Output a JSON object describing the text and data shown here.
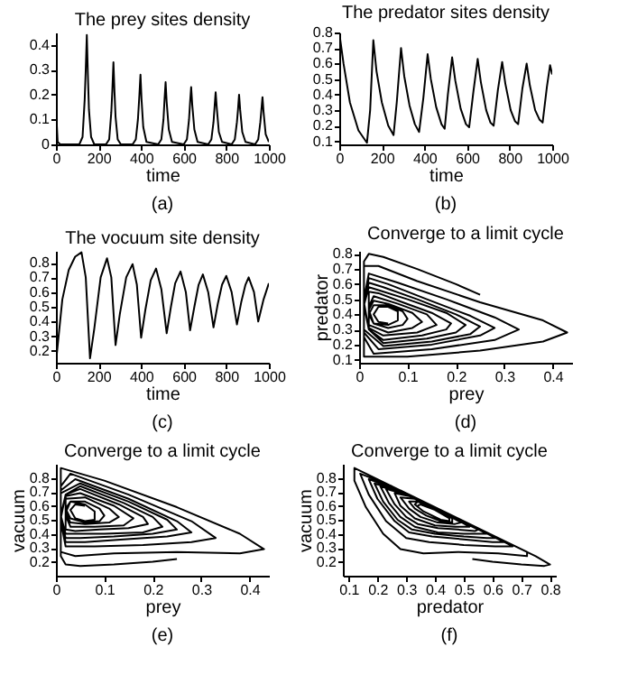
{
  "chart_data": [
    {
      "type": "line",
      "title": "The prey sites density",
      "xlabel": "time",
      "annotations": [
        "(a)"
      ],
      "color": "#000000",
      "xlim": [
        0,
        1000
      ],
      "xticks": [
        0,
        200,
        400,
        600,
        800,
        1000
      ],
      "ylim": [
        0,
        0.45
      ],
      "yticks": [
        0,
        0.1,
        0.2,
        0.3,
        0.4
      ],
      "x": [
        0,
        8,
        20,
        110,
        125,
        135,
        140,
        145,
        150,
        155,
        165,
        180,
        235,
        250,
        260,
        265,
        270,
        275,
        280,
        290,
        305,
        360,
        375,
        385,
        392,
        397,
        402,
        410,
        425,
        480,
        495,
        505,
        510,
        515,
        520,
        530,
        545,
        600,
        615,
        625,
        630,
        635,
        640,
        650,
        665,
        715,
        730,
        740,
        745,
        750,
        755,
        765,
        780,
        825,
        840,
        850,
        855,
        860,
        865,
        875,
        890,
        935,
        950,
        960,
        965,
        970,
        975,
        985,
        1000
      ],
      "values": [
        0.15,
        0.01,
        0,
        0,
        0.03,
        0.18,
        0.3,
        0.44,
        0.28,
        0.14,
        0.03,
        0,
        0,
        0.02,
        0.13,
        0.22,
        0.33,
        0.21,
        0.11,
        0.02,
        0,
        0,
        0.02,
        0.1,
        0.2,
        0.28,
        0.18,
        0.07,
        0.01,
        0,
        0.02,
        0.1,
        0.18,
        0.25,
        0.17,
        0.06,
        0.01,
        0,
        0.02,
        0.1,
        0.17,
        0.23,
        0.16,
        0.06,
        0.01,
        0,
        0.02,
        0.09,
        0.15,
        0.21,
        0.15,
        0.05,
        0.01,
        0,
        0.02,
        0.09,
        0.14,
        0.2,
        0.14,
        0.05,
        0.01,
        0,
        0.02,
        0.09,
        0.14,
        0.19,
        0.13,
        0.04,
        0.01
      ]
    },
    {
      "type": "line",
      "title": "The predator sites density",
      "xlabel": "time",
      "annotations": [
        "(b)"
      ],
      "color": "#000000",
      "xlim": [
        0,
        1000
      ],
      "xticks": [
        0,
        200,
        400,
        600,
        800,
        1000
      ],
      "ylim": [
        0.08,
        0.8
      ],
      "yticks": [
        0.1,
        0.2,
        0.3,
        0.4,
        0.5,
        0.6,
        0.7,
        0.8
      ],
      "x": [
        0,
        20,
        50,
        90,
        130,
        145,
        160,
        175,
        200,
        230,
        255,
        270,
        290,
        305,
        330,
        355,
        375,
        395,
        415,
        430,
        455,
        480,
        495,
        510,
        530,
        545,
        570,
        595,
        610,
        630,
        650,
        665,
        690,
        710,
        725,
        745,
        765,
        780,
        805,
        825,
        840,
        860,
        880,
        895,
        920,
        940,
        955,
        975,
        990,
        1000
      ],
      "values": [
        0.8,
        0.6,
        0.35,
        0.17,
        0.09,
        0.3,
        0.75,
        0.55,
        0.35,
        0.2,
        0.14,
        0.35,
        0.7,
        0.52,
        0.33,
        0.21,
        0.16,
        0.38,
        0.66,
        0.5,
        0.32,
        0.21,
        0.18,
        0.4,
        0.64,
        0.49,
        0.31,
        0.21,
        0.19,
        0.42,
        0.63,
        0.48,
        0.3,
        0.22,
        0.2,
        0.43,
        0.61,
        0.47,
        0.3,
        0.23,
        0.21,
        0.44,
        0.6,
        0.46,
        0.3,
        0.24,
        0.22,
        0.45,
        0.59,
        0.53
      ]
    },
    {
      "type": "line",
      "title": "The vocuum site density",
      "xlabel": "time",
      "annotations": [
        "(c)"
      ],
      "color": "#000000",
      "xlim": [
        0,
        1000
      ],
      "xticks": [
        0,
        200,
        400,
        600,
        800,
        1000
      ],
      "ylim": [
        0.12,
        0.88
      ],
      "yticks": [
        0.2,
        0.3,
        0.4,
        0.5,
        0.6,
        0.7,
        0.8
      ],
      "x": [
        0,
        30,
        60,
        90,
        120,
        140,
        160,
        180,
        210,
        240,
        260,
        280,
        300,
        330,
        360,
        380,
        400,
        420,
        445,
        470,
        495,
        520,
        540,
        560,
        585,
        610,
        630,
        650,
        670,
        690,
        715,
        740,
        760,
        780,
        800,
        825,
        850,
        870,
        890,
        905,
        930,
        950,
        975,
        1000
      ],
      "values": [
        0.12,
        0.55,
        0.75,
        0.84,
        0.87,
        0.7,
        0.15,
        0.35,
        0.7,
        0.83,
        0.7,
        0.24,
        0.45,
        0.7,
        0.79,
        0.65,
        0.29,
        0.48,
        0.68,
        0.76,
        0.62,
        0.32,
        0.5,
        0.66,
        0.74,
        0.6,
        0.34,
        0.5,
        0.65,
        0.72,
        0.6,
        0.36,
        0.52,
        0.65,
        0.71,
        0.6,
        0.38,
        0.53,
        0.65,
        0.7,
        0.6,
        0.4,
        0.55,
        0.66
      ]
    },
    {
      "type": "line",
      "title": "Converge to a limit cycle",
      "xlabel": "prey",
      "ylabel": "predator",
      "annotations": [
        "(d)"
      ],
      "color": "#000000",
      "xlim": [
        0,
        0.44
      ],
      "xticks": [
        0,
        0.1,
        0.2,
        0.3,
        0.4
      ],
      "ylim": [
        0.08,
        0.82
      ],
      "yticks": [
        0.1,
        0.2,
        0.3,
        0.4,
        0.5,
        0.6,
        0.7,
        0.8
      ],
      "x": [
        0.25,
        0.2,
        0.12,
        0.05,
        0.02,
        0.01,
        0.01,
        0.01,
        0.01,
        0.1,
        0.25,
        0.38,
        0.43,
        0.38,
        0.25,
        0.12,
        0.04,
        0.01,
        0.01,
        0.01,
        0.03,
        0.15,
        0.28,
        0.33,
        0.28,
        0.18,
        0.08,
        0.02,
        0.01,
        0.01,
        0.04,
        0.15,
        0.25,
        0.28,
        0.23,
        0.14,
        0.06,
        0.02,
        0.01,
        0.01,
        0.05,
        0.15,
        0.23,
        0.25,
        0.2,
        0.12,
        0.05,
        0.02,
        0.01,
        0.02,
        0.05,
        0.14,
        0.2,
        0.22,
        0.18,
        0.1,
        0.04,
        0.02,
        0.01,
        0.02,
        0.05,
        0.13,
        0.18,
        0.19,
        0.15,
        0.09,
        0.04,
        0.02,
        0.02,
        0.02,
        0.05,
        0.12,
        0.16,
        0.14,
        0.08,
        0.03,
        0.02,
        0.02,
        0.06,
        0.11,
        0.13,
        0.11,
        0.06,
        0.03,
        0.02,
        0.03,
        0.06,
        0.09,
        0.1,
        0.09,
        0.06,
        0.03,
        0.02,
        0.03,
        0.06,
        0.08,
        0.08,
        0.06,
        0.04,
        0.03,
        0.04,
        0.06
      ],
      "values": [
        0.53,
        0.6,
        0.7,
        0.78,
        0.8,
        0.75,
        0.6,
        0.3,
        0.12,
        0.12,
        0.16,
        0.22,
        0.28,
        0.36,
        0.48,
        0.62,
        0.72,
        0.72,
        0.5,
        0.25,
        0.14,
        0.17,
        0.23,
        0.3,
        0.38,
        0.5,
        0.61,
        0.67,
        0.5,
        0.28,
        0.17,
        0.2,
        0.26,
        0.31,
        0.39,
        0.5,
        0.6,
        0.64,
        0.5,
        0.3,
        0.19,
        0.22,
        0.27,
        0.32,
        0.4,
        0.5,
        0.58,
        0.61,
        0.48,
        0.3,
        0.21,
        0.24,
        0.28,
        0.33,
        0.41,
        0.5,
        0.56,
        0.58,
        0.46,
        0.3,
        0.23,
        0.26,
        0.3,
        0.34,
        0.41,
        0.48,
        0.54,
        0.55,
        0.44,
        0.31,
        0.26,
        0.28,
        0.33,
        0.4,
        0.47,
        0.52,
        0.45,
        0.33,
        0.28,
        0.31,
        0.35,
        0.41,
        0.47,
        0.49,
        0.43,
        0.34,
        0.31,
        0.33,
        0.37,
        0.42,
        0.46,
        0.46,
        0.4,
        0.34,
        0.33,
        0.36,
        0.42,
        0.45,
        0.45,
        0.4,
        0.35,
        0.34
      ]
    },
    {
      "type": "line",
      "title": "Converge to a limit cycle",
      "xlabel": "prey",
      "ylabel": "vacuum",
      "annotations": [
        "(e)"
      ],
      "color": "#000000",
      "xlim": [
        0,
        0.44
      ],
      "xticks": [
        0,
        0.1,
        0.2,
        0.3,
        0.4
      ],
      "ylim": [
        0.1,
        0.9
      ],
      "yticks": [
        0.2,
        0.3,
        0.4,
        0.5,
        0.6,
        0.7,
        0.8
      ],
      "x": [
        0.25,
        0.2,
        0.12,
        0.05,
        0.02,
        0.01,
        0.01,
        0.01,
        0.01,
        0.1,
        0.25,
        0.38,
        0.43,
        0.38,
        0.25,
        0.12,
        0.04,
        0.01,
        0.01,
        0.01,
        0.03,
        0.15,
        0.28,
        0.33,
        0.28,
        0.18,
        0.08,
        0.02,
        0.01,
        0.01,
        0.04,
        0.15,
        0.25,
        0.28,
        0.23,
        0.14,
        0.06,
        0.02,
        0.01,
        0.01,
        0.05,
        0.15,
        0.23,
        0.25,
        0.2,
        0.12,
        0.05,
        0.02,
        0.01,
        0.02,
        0.05,
        0.14,
        0.2,
        0.22,
        0.18,
        0.1,
        0.04,
        0.02,
        0.01,
        0.02,
        0.05,
        0.13,
        0.18,
        0.19,
        0.15,
        0.09,
        0.04,
        0.02,
        0.02,
        0.02,
        0.05,
        0.12,
        0.16,
        0.14,
        0.08,
        0.03,
        0.02,
        0.02,
        0.06,
        0.11,
        0.13,
        0.11,
        0.06,
        0.03,
        0.02,
        0.03,
        0.06,
        0.09,
        0.1,
        0.09,
        0.06,
        0.03,
        0.02,
        0.03,
        0.06,
        0.08,
        0.08,
        0.06,
        0.04,
        0.03,
        0.04,
        0.06
      ],
      "values": [
        0.22,
        0.2,
        0.18,
        0.17,
        0.18,
        0.24,
        0.39,
        0.69,
        0.87,
        0.78,
        0.59,
        0.4,
        0.29,
        0.26,
        0.27,
        0.26,
        0.24,
        0.27,
        0.49,
        0.74,
        0.83,
        0.68,
        0.49,
        0.37,
        0.34,
        0.32,
        0.31,
        0.31,
        0.49,
        0.71,
        0.79,
        0.65,
        0.49,
        0.41,
        0.38,
        0.36,
        0.34,
        0.34,
        0.49,
        0.69,
        0.76,
        0.63,
        0.5,
        0.43,
        0.4,
        0.38,
        0.37,
        0.37,
        0.51,
        0.68,
        0.74,
        0.62,
        0.52,
        0.45,
        0.41,
        0.4,
        0.4,
        0.4,
        0.53,
        0.68,
        0.72,
        0.61,
        0.52,
        0.47,
        0.44,
        0.43,
        0.42,
        0.43,
        0.54,
        0.67,
        0.69,
        0.6,
        0.51,
        0.46,
        0.45,
        0.45,
        0.53,
        0.65,
        0.66,
        0.58,
        0.52,
        0.48,
        0.47,
        0.48,
        0.55,
        0.63,
        0.63,
        0.58,
        0.53,
        0.49,
        0.48,
        0.51,
        0.58,
        0.63,
        0.61,
        0.56,
        0.5,
        0.49,
        0.51,
        0.57,
        0.61,
        0.6
      ]
    },
    {
      "type": "line",
      "title": "Converge to a limit cycle",
      "xlabel": "predator",
      "ylabel": "vacuum",
      "annotations": [
        "(f)"
      ],
      "color": "#000000",
      "xlim": [
        0.08,
        0.82
      ],
      "xticks": [
        0.1,
        0.2,
        0.3,
        0.4,
        0.5,
        0.6,
        0.7,
        0.8
      ],
      "ylim": [
        0.1,
        0.9
      ],
      "yticks": [
        0.2,
        0.3,
        0.4,
        0.5,
        0.6,
        0.7,
        0.8
      ],
      "x": [
        0.53,
        0.6,
        0.7,
        0.78,
        0.8,
        0.75,
        0.6,
        0.3,
        0.12,
        0.12,
        0.16,
        0.22,
        0.28,
        0.36,
        0.48,
        0.62,
        0.72,
        0.72,
        0.5,
        0.25,
        0.14,
        0.17,
        0.23,
        0.3,
        0.38,
        0.5,
        0.61,
        0.67,
        0.5,
        0.28,
        0.17,
        0.2,
        0.26,
        0.31,
        0.39,
        0.5,
        0.6,
        0.64,
        0.5,
        0.3,
        0.19,
        0.22,
        0.27,
        0.32,
        0.4,
        0.5,
        0.58,
        0.61,
        0.48,
        0.3,
        0.21,
        0.24,
        0.28,
        0.33,
        0.41,
        0.5,
        0.56,
        0.58,
        0.46,
        0.3,
        0.23,
        0.26,
        0.3,
        0.34,
        0.41,
        0.48,
        0.54,
        0.55,
        0.44,
        0.31,
        0.26,
        0.28,
        0.33,
        0.4,
        0.47,
        0.52,
        0.45,
        0.33,
        0.28,
        0.31,
        0.35,
        0.41,
        0.47,
        0.49,
        0.43,
        0.34,
        0.31,
        0.33,
        0.37,
        0.42,
        0.46,
        0.46,
        0.4,
        0.34,
        0.33,
        0.36,
        0.42,
        0.45,
        0.45,
        0.4,
        0.35,
        0.34
      ],
      "values": [
        0.22,
        0.2,
        0.18,
        0.17,
        0.18,
        0.24,
        0.39,
        0.69,
        0.87,
        0.78,
        0.59,
        0.4,
        0.29,
        0.26,
        0.27,
        0.26,
        0.24,
        0.27,
        0.49,
        0.74,
        0.83,
        0.68,
        0.49,
        0.37,
        0.34,
        0.32,
        0.31,
        0.31,
        0.49,
        0.71,
        0.79,
        0.65,
        0.49,
        0.41,
        0.38,
        0.36,
        0.34,
        0.34,
        0.49,
        0.69,
        0.76,
        0.63,
        0.5,
        0.43,
        0.4,
        0.38,
        0.37,
        0.37,
        0.51,
        0.68,
        0.74,
        0.62,
        0.52,
        0.45,
        0.41,
        0.4,
        0.4,
        0.4,
        0.53,
        0.68,
        0.72,
        0.61,
        0.52,
        0.47,
        0.44,
        0.43,
        0.42,
        0.43,
        0.54,
        0.67,
        0.69,
        0.6,
        0.51,
        0.46,
        0.45,
        0.45,
        0.53,
        0.65,
        0.66,
        0.58,
        0.52,
        0.48,
        0.47,
        0.48,
        0.55,
        0.63,
        0.63,
        0.58,
        0.53,
        0.49,
        0.48,
        0.51,
        0.58,
        0.63,
        0.61,
        0.56,
        0.5,
        0.49,
        0.51,
        0.57,
        0.61,
        0.6
      ]
    }
  ]
}
